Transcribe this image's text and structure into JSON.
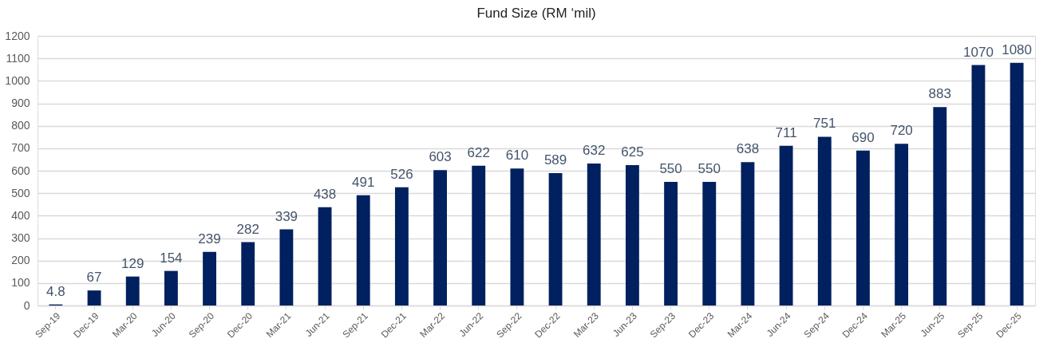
{
  "chart_data": {
    "type": "bar",
    "title": "Fund Size (RM ‘mil)",
    "categories": [
      "Sep-19",
      "Dec-19",
      "Mar-20",
      "Jun-20",
      "Sep-20",
      "Dec-20",
      "Mar-21",
      "Jun-21",
      "Sep-21",
      "Dec-21",
      "Mar-22",
      "Jun-22",
      "Sep-22",
      "Dec-22",
      "Mar-23",
      "Jun-23",
      "Sep-23",
      "Dec-23",
      "Mar-24",
      "Jun-24",
      "Sep-24",
      "Dec-24",
      "Mar-25",
      "Jun-25",
      "Sep-25",
      "Dec-25"
    ],
    "values": [
      4.8,
      67,
      129,
      154,
      239,
      282,
      339,
      438,
      491,
      526,
      603,
      622,
      610,
      589,
      632,
      625,
      550,
      550,
      638,
      711,
      751,
      690,
      720,
      883,
      1070,
      1080
    ],
    "color": "#00205f",
    "ylim": [
      0,
      1200
    ],
    "yticks": [
      0,
      100,
      200,
      300,
      400,
      500,
      600,
      700,
      800,
      900,
      1000,
      1100,
      1200
    ],
    "grid": "y",
    "data_labels": true
  }
}
